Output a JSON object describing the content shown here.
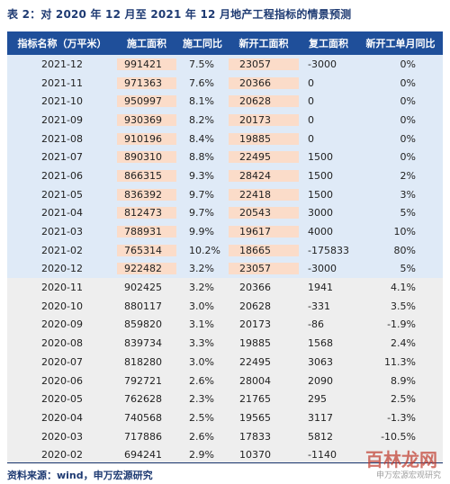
{
  "caption": "表 2：对 2020 年 12 月至 2021 年 12 月地产工程指标的情景预测",
  "headers": [
    "指标名称（万平米）",
    "施工面积",
    "施工同比",
    "新开工面积",
    "复工面积",
    "新开工单月同比"
  ],
  "rows": [
    [
      "2021-12",
      "991421",
      "7.5%",
      "23057",
      "-3000",
      "0%"
    ],
    [
      "2021-11",
      "971363",
      "7.6%",
      "20366",
      "0",
      "0%"
    ],
    [
      "2021-10",
      "950997",
      "8.1%",
      "20628",
      "0",
      "0%"
    ],
    [
      "2021-09",
      "930369",
      "8.2%",
      "20173",
      "0",
      "0%"
    ],
    [
      "2021-08",
      "910196",
      "8.4%",
      "19885",
      "0",
      "0%"
    ],
    [
      "2021-07",
      "890310",
      "8.8%",
      "22495",
      "1500",
      "0%"
    ],
    [
      "2021-06",
      "866315",
      "9.3%",
      "28424",
      "1500",
      "2%"
    ],
    [
      "2021-05",
      "836392",
      "9.7%",
      "22418",
      "1500",
      "3%"
    ],
    [
      "2021-04",
      "812473",
      "9.7%",
      "20543",
      "3000",
      "5%"
    ],
    [
      "2021-03",
      "788931",
      "9.9%",
      "19617",
      "4000",
      "10%"
    ],
    [
      "2021-02",
      "765314",
      "10.2%",
      "18665",
      "-175833",
      "80%"
    ],
    [
      "2020-12",
      "922482",
      "3.2%",
      "23057",
      "-3000",
      "5%"
    ],
    [
      "2020-11",
      "902425",
      "3.2%",
      "20366",
      "1941",
      "4.1%"
    ],
    [
      "2020-10",
      "880117",
      "3.0%",
      "20628",
      "-331",
      "3.5%"
    ],
    [
      "2020-09",
      "859820",
      "3.1%",
      "20173",
      "-86",
      "-1.9%"
    ],
    [
      "2020-08",
      "839734",
      "3.3%",
      "19885",
      "1568",
      "2.4%"
    ],
    [
      "2020-07",
      "818280",
      "3.0%",
      "22495",
      "3063",
      "11.3%"
    ],
    [
      "2020-06",
      "792721",
      "2.6%",
      "28004",
      "2090",
      "8.9%"
    ],
    [
      "2020-05",
      "762628",
      "2.3%",
      "21765",
      "295",
      "2.5%"
    ],
    [
      "2020-04",
      "740568",
      "2.5%",
      "19565",
      "3117",
      "-1.3%"
    ],
    [
      "2020-03",
      "717886",
      "2.6%",
      "17833",
      "5812",
      "-10.5%"
    ],
    [
      "2020-02",
      "694241",
      "2.9%",
      "10370",
      "-1140",
      ""
    ]
  ],
  "footer": "资料来源：wind，申万宏源研究",
  "watermark": "百林龙网",
  "watermark_sub": "申万宏源宏观研究"
}
